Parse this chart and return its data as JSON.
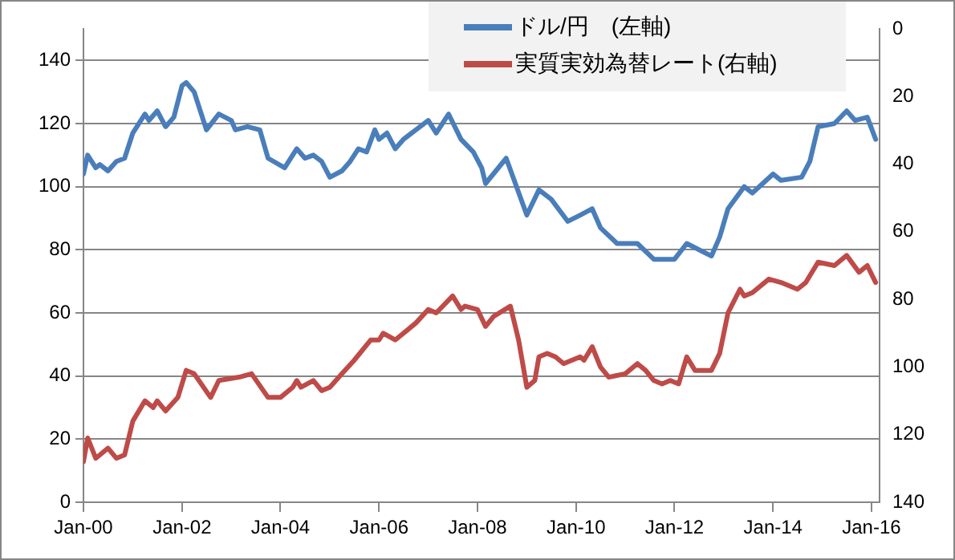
{
  "chart_data": {
    "type": "line",
    "series": [
      {
        "name": "ドル/円　(左軸)",
        "color": "#4a7ebb",
        "axis": "y",
        "x": [
          "2000-01",
          "2000-02",
          "2000-04",
          "2000-05",
          "2000-07",
          "2000-09",
          "2000-11",
          "2001-01",
          "2001-04",
          "2001-05",
          "2001-07",
          "2001-09",
          "2001-11",
          "2002-01",
          "2002-02",
          "2002-04",
          "2002-07",
          "2002-10",
          "2003-01",
          "2003-02",
          "2003-05",
          "2003-08",
          "2003-10",
          "2004-02",
          "2004-05",
          "2004-07",
          "2004-09",
          "2004-11",
          "2005-01",
          "2005-04",
          "2005-06",
          "2005-08",
          "2005-10",
          "2005-12",
          "2006-01",
          "2006-03",
          "2006-05",
          "2006-07",
          "2006-10",
          "2007-01",
          "2007-03",
          "2007-06",
          "2007-09",
          "2007-12",
          "2008-02",
          "2008-03",
          "2008-08",
          "2009-01",
          "2009-04",
          "2009-07",
          "2009-11",
          "2010-02",
          "2010-05",
          "2010-07",
          "2010-11",
          "2011-04",
          "2011-08",
          "2012-01",
          "2012-04",
          "2012-10",
          "2012-12",
          "2013-02",
          "2013-06",
          "2013-08",
          "2014-01",
          "2014-03",
          "2014-08",
          "2014-10",
          "2014-12",
          "2015-04",
          "2015-07",
          "2015-09",
          "2015-12",
          "2016-02"
        ],
        "values": [
          104,
          110,
          106,
          107,
          105,
          108,
          109,
          117,
          123,
          121,
          124,
          119,
          122,
          132,
          133,
          130,
          118,
          123,
          121,
          118,
          119,
          118,
          109,
          106,
          112,
          109,
          110,
          108,
          103,
          105,
          108,
          112,
          111,
          118,
          115,
          117,
          112,
          115,
          118,
          121,
          117,
          123,
          115,
          111,
          106,
          101,
          109,
          91,
          99,
          96,
          89,
          91,
          93,
          87,
          82,
          82,
          77,
          77,
          82,
          78,
          84,
          93,
          100,
          98,
          104,
          102,
          103,
          108,
          119,
          120,
          124,
          121,
          122,
          115
        ]
      },
      {
        "name": "実質実効為替レート(右軸)",
        "color": "#be4b48",
        "axis": "y2",
        "x": [
          "2000-01",
          "2000-02",
          "2000-04",
          "2000-06",
          "2000-07",
          "2000-09",
          "2000-11",
          "2001-01",
          "2001-04",
          "2001-06",
          "2001-07",
          "2001-09",
          "2001-12",
          "2002-02",
          "2002-04",
          "2002-08",
          "2002-10",
          "2003-03",
          "2003-06",
          "2003-10",
          "2004-01",
          "2004-04",
          "2004-05",
          "2004-06",
          "2004-09",
          "2004-11",
          "2005-01",
          "2005-04",
          "2005-07",
          "2005-11",
          "2006-01",
          "2006-02",
          "2006-05",
          "2006-08",
          "2006-10",
          "2007-01",
          "2007-03",
          "2007-07",
          "2007-09",
          "2007-10",
          "2008-01",
          "2008-03",
          "2008-05",
          "2008-09",
          "2008-11",
          "2009-01",
          "2009-03",
          "2009-04",
          "2009-06",
          "2009-08",
          "2009-10",
          "2010-02",
          "2010-03",
          "2010-05",
          "2010-07",
          "2010-09",
          "2011-01",
          "2011-04",
          "2011-06",
          "2011-08",
          "2011-10",
          "2011-12",
          "2012-02",
          "2012-04",
          "2012-06",
          "2012-10",
          "2012-12",
          "2013-02",
          "2013-05",
          "2013-06",
          "2013-08",
          "2013-12",
          "2014-03",
          "2014-07",
          "2014-09",
          "2014-12",
          "2015-04",
          "2015-07",
          "2015-10",
          "2015-12",
          "2016-02"
        ],
        "values": [
          128,
          121,
          127,
          125,
          124,
          127,
          126,
          116,
          110,
          112,
          110,
          113,
          109,
          101,
          102,
          109,
          104,
          103,
          102,
          109,
          109,
          106,
          104,
          106,
          104,
          107,
          106,
          102,
          98,
          92,
          92,
          90,
          92,
          89,
          87,
          83,
          84,
          79,
          83,
          82,
          83,
          88,
          85,
          82,
          92,
          106,
          104,
          97,
          96,
          97,
          99,
          97,
          98,
          94,
          100,
          103,
          102,
          99,
          101,
          104,
          105,
          104,
          105,
          97,
          101,
          101,
          96,
          84,
          77,
          79,
          78,
          74,
          75,
          77,
          75,
          69,
          70,
          67,
          72,
          70,
          75
        ]
      }
    ],
    "xlim": [
      "2000-01",
      "2016-03"
    ],
    "xticks": [
      {
        "value": "2000-01",
        "label": "Jan-00"
      },
      {
        "value": "2002-01",
        "label": "Jan-02"
      },
      {
        "value": "2004-01",
        "label": "Jan-04"
      },
      {
        "value": "2006-01",
        "label": "Jan-06"
      },
      {
        "value": "2008-01",
        "label": "Jan-08"
      },
      {
        "value": "2010-01",
        "label": "Jan-10"
      },
      {
        "value": "2012-01",
        "label": "Jan-12"
      },
      {
        "value": "2014-01",
        "label": "Jan-14"
      },
      {
        "value": "2016-01",
        "label": "Jan-16"
      }
    ],
    "ylim": [
      0,
      150
    ],
    "yticks": [
      0,
      20,
      40,
      60,
      80,
      100,
      120,
      140
    ],
    "y2lim": [
      140,
      0
    ],
    "y2ticks": [
      0,
      20,
      40,
      60,
      80,
      100,
      120,
      140
    ],
    "grid": "y",
    "legend": "top right",
    "marker": "none",
    "line_style": "solid"
  }
}
